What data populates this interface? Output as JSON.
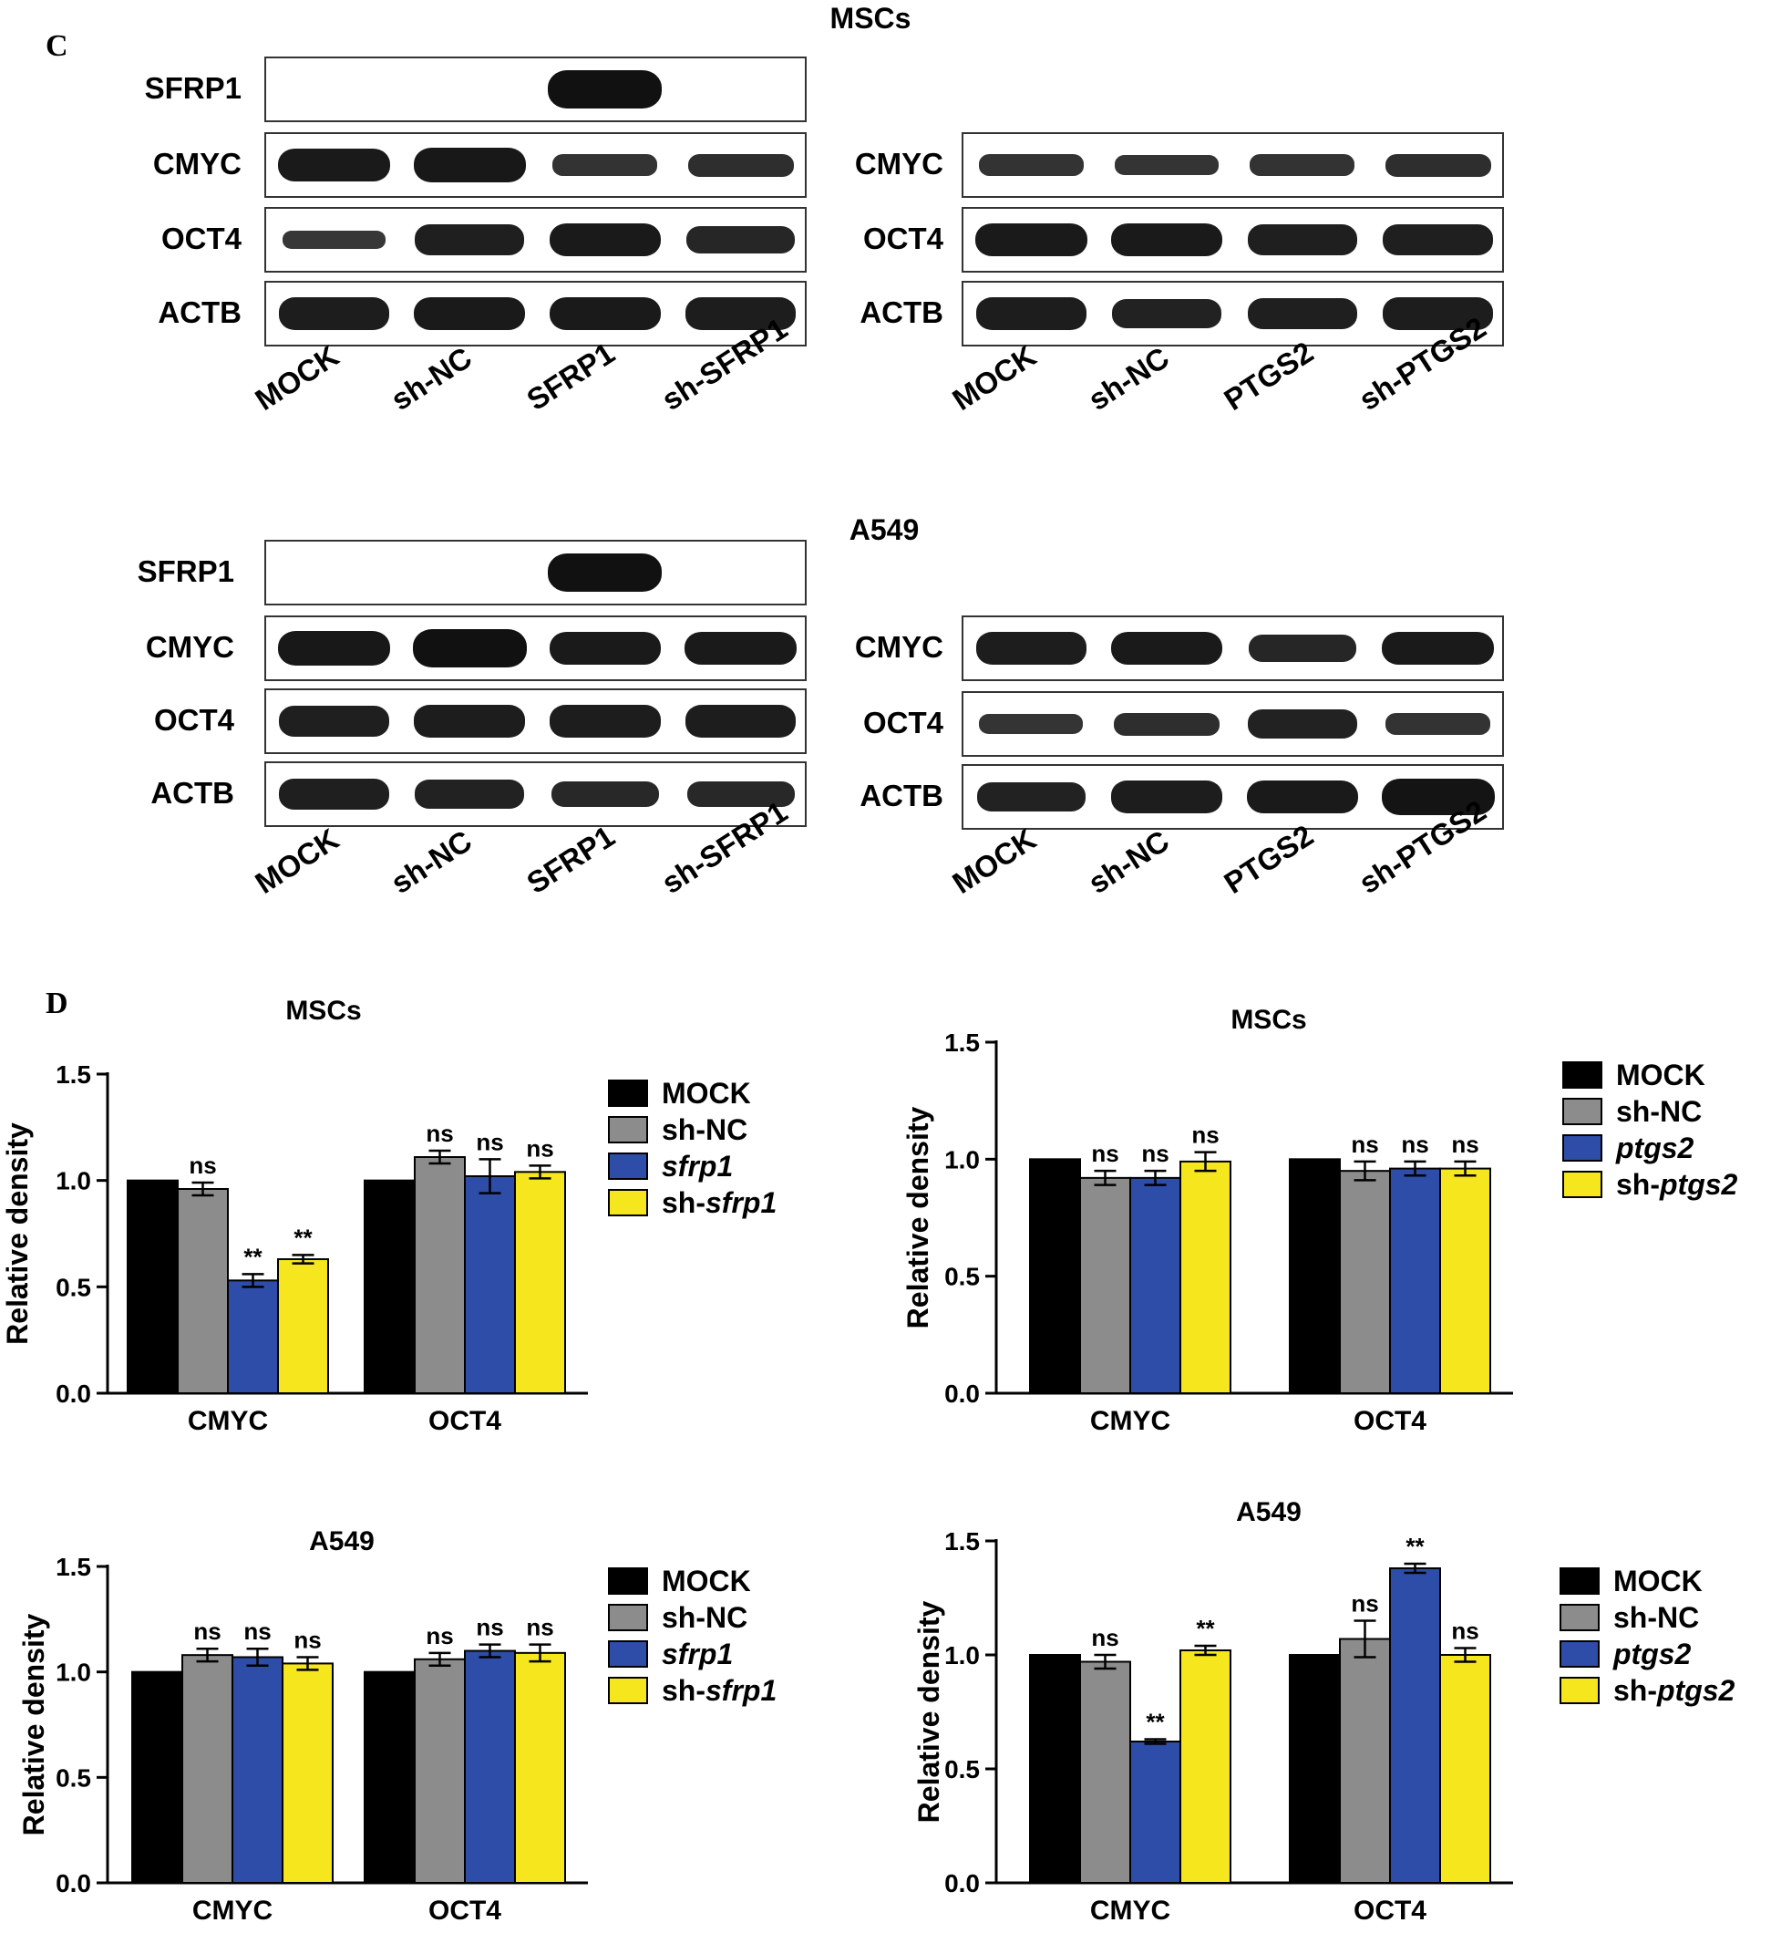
{
  "labels": {
    "panel_c": "C",
    "panel_d": "D"
  },
  "blots": [
    {
      "title": "MSCs",
      "left": {
        "rows": [
          {
            "label": "SFRP1",
            "intensity": [
              0,
              0,
              1.0,
              0
            ]
          },
          {
            "label": "CMYC",
            "intensity": [
              0.85,
              0.9,
              0.45,
              0.5
            ]
          },
          {
            "label": "OCT4",
            "intensity": [
              0.35,
              0.75,
              0.85,
              0.65
            ]
          },
          {
            "label": "ACTB",
            "intensity": [
              0.8,
              0.85,
              0.85,
              0.8
            ]
          }
        ],
        "lanes": [
          "MOCK",
          "sh-NC",
          "SFRP1",
          "sh-SFRP1"
        ]
      },
      "right": {
        "rows": [
          {
            "label": "CMYC",
            "intensity": [
              0.45,
              0.4,
              0.45,
              0.5
            ]
          },
          {
            "label": "OCT4",
            "intensity": [
              0.85,
              0.85,
              0.75,
              0.75
            ]
          },
          {
            "label": "ACTB",
            "intensity": [
              0.8,
              0.7,
              0.75,
              0.8
            ]
          }
        ],
        "lanes": [
          "MOCK",
          "sh-NC",
          "PTGS2",
          "sh-PTGS2"
        ]
      }
    },
    {
      "title": "A549",
      "left": {
        "rows": [
          {
            "label": "SFRP1",
            "intensity": [
              0,
              0,
              1.0,
              0
            ]
          },
          {
            "label": "CMYC",
            "intensity": [
              0.9,
              1.0,
              0.85,
              0.85
            ]
          },
          {
            "label": "OCT4",
            "intensity": [
              0.75,
              0.8,
              0.8,
              0.8
            ]
          },
          {
            "label": "ACTB",
            "intensity": [
              0.75,
              0.7,
              0.6,
              0.6
            ]
          }
        ],
        "lanes": [
          "MOCK",
          "sh-NC",
          "SFRP1",
          "sh-SFRP1"
        ]
      },
      "right": {
        "rows": [
          {
            "label": "CMYC",
            "intensity": [
              0.8,
              0.85,
              0.65,
              0.85
            ]
          },
          {
            "label": "OCT4",
            "intensity": [
              0.4,
              0.5,
              0.7,
              0.45
            ]
          },
          {
            "label": "ACTB",
            "intensity": [
              0.7,
              0.8,
              0.85,
              0.95
            ]
          }
        ],
        "lanes": [
          "MOCK",
          "sh-NC",
          "PTGS2",
          "sh-PTGS2"
        ]
      }
    }
  ],
  "colors": {
    "MOCK": "#000000",
    "sh-NC": "#8c8c8c",
    "overexp": "#2e4da8",
    "sh": "#f5e61e"
  },
  "chart_data": [
    {
      "type": "bar",
      "title": "MSCs",
      "ylabel": "Relative density",
      "categories": [
        "CMYC",
        "OCT4"
      ],
      "ylim": [
        0,
        1.5
      ],
      "yticks": [
        "0.0",
        "0.5",
        "1.0",
        "1.5"
      ],
      "legend": [
        {
          "name": "MOCK",
          "italic": false
        },
        {
          "name": "sh-NC",
          "italic": false
        },
        {
          "name": "sfrp1",
          "italic": true
        },
        {
          "name": "sh-",
          "suffix": "sfrp1",
          "italic": false
        }
      ],
      "series": [
        {
          "values": [
            1.0,
            1.0
          ],
          "errors": [
            0,
            0
          ],
          "sig": [
            "",
            ""
          ]
        },
        {
          "values": [
            0.96,
            1.11
          ],
          "errors": [
            0.03,
            0.03
          ],
          "sig": [
            "ns",
            "ns"
          ]
        },
        {
          "values": [
            0.53,
            1.02
          ],
          "errors": [
            0.03,
            0.08
          ],
          "sig": [
            "**",
            "ns"
          ]
        },
        {
          "values": [
            0.63,
            1.04
          ],
          "errors": [
            0.02,
            0.03
          ],
          "sig": [
            "**",
            "ns"
          ]
        }
      ]
    },
    {
      "type": "bar",
      "title": "MSCs",
      "ylabel": "Relative density",
      "categories": [
        "CMYC",
        "OCT4"
      ],
      "ylim": [
        0,
        1.5
      ],
      "yticks": [
        "0.0",
        "0.5",
        "1.0",
        "1.5"
      ],
      "legend": [
        {
          "name": "MOCK",
          "italic": false
        },
        {
          "name": "sh-NC",
          "italic": false
        },
        {
          "name": "ptgs2",
          "italic": true
        },
        {
          "name": "sh-",
          "suffix": "ptgs2",
          "italic": false
        }
      ],
      "series": [
        {
          "values": [
            1.0,
            1.0
          ],
          "errors": [
            0,
            0
          ],
          "sig": [
            "",
            ""
          ]
        },
        {
          "values": [
            0.92,
            0.95
          ],
          "errors": [
            0.03,
            0.04
          ],
          "sig": [
            "ns",
            "ns"
          ]
        },
        {
          "values": [
            0.92,
            0.96
          ],
          "errors": [
            0.03,
            0.03
          ],
          "sig": [
            "ns",
            "ns"
          ]
        },
        {
          "values": [
            0.99,
            0.96
          ],
          "errors": [
            0.04,
            0.03
          ],
          "sig": [
            "ns",
            "ns"
          ]
        }
      ]
    },
    {
      "type": "bar",
      "title": "A549",
      "ylabel": "Relative density",
      "categories": [
        "CMYC",
        "OCT4"
      ],
      "ylim": [
        0,
        1.5
      ],
      "yticks": [
        "0.0",
        "0.5",
        "1.0",
        "1.5"
      ],
      "legend": [
        {
          "name": "MOCK",
          "italic": false
        },
        {
          "name": "sh-NC",
          "italic": false
        },
        {
          "name": "sfrp1",
          "italic": true
        },
        {
          "name": "sh-",
          "suffix": "sfrp1",
          "italic": false
        }
      ],
      "series": [
        {
          "values": [
            1.0,
            1.0
          ],
          "errors": [
            0,
            0
          ],
          "sig": [
            "",
            ""
          ]
        },
        {
          "values": [
            1.08,
            1.06
          ],
          "errors": [
            0.03,
            0.03
          ],
          "sig": [
            "ns",
            "ns"
          ]
        },
        {
          "values": [
            1.07,
            1.1
          ],
          "errors": [
            0.04,
            0.03
          ],
          "sig": [
            "ns",
            "ns"
          ]
        },
        {
          "values": [
            1.04,
            1.09
          ],
          "errors": [
            0.03,
            0.04
          ],
          "sig": [
            "ns",
            "ns"
          ]
        }
      ]
    },
    {
      "type": "bar",
      "title": "A549",
      "ylabel": "Relative density",
      "categories": [
        "CMYC",
        "OCT4"
      ],
      "ylim": [
        0,
        1.5
      ],
      "yticks": [
        "0.0",
        "0.5",
        "1.0",
        "1.5"
      ],
      "legend": [
        {
          "name": "MOCK",
          "italic": false
        },
        {
          "name": "sh-NC",
          "italic": false
        },
        {
          "name": "ptgs2",
          "italic": true
        },
        {
          "name": "sh-",
          "suffix": "ptgs2",
          "italic": false
        }
      ],
      "series": [
        {
          "values": [
            1.0,
            1.0
          ],
          "errors": [
            0,
            0
          ],
          "sig": [
            "",
            ""
          ]
        },
        {
          "values": [
            0.97,
            1.07
          ],
          "errors": [
            0.03,
            0.08
          ],
          "sig": [
            "ns",
            "ns"
          ]
        },
        {
          "values": [
            0.62,
            1.38
          ],
          "errors": [
            0.01,
            0.02
          ],
          "sig": [
            "**",
            "**"
          ]
        },
        {
          "values": [
            1.02,
            1.0
          ],
          "errors": [
            0.02,
            0.03
          ],
          "sig": [
            "**",
            "ns"
          ]
        }
      ]
    }
  ]
}
